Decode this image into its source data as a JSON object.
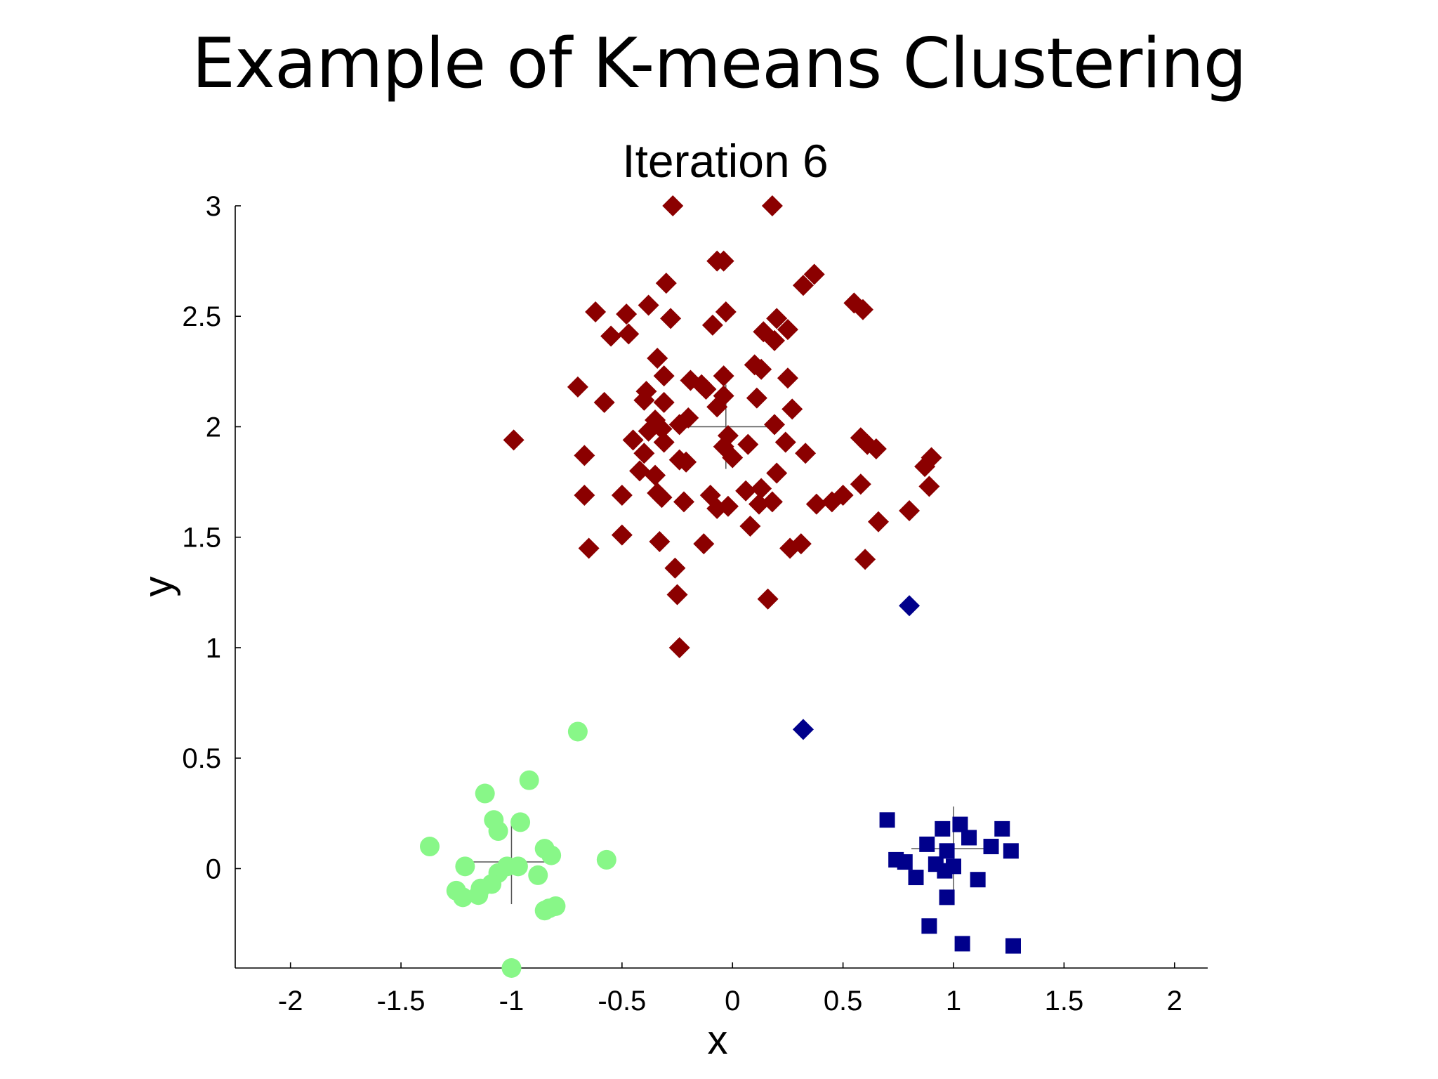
{
  "slide": {
    "title": "Example of K-means Clustering"
  },
  "chart_data": {
    "type": "scatter",
    "title": "Iteration 6",
    "xlabel": "x",
    "ylabel": "y",
    "xlim": [
      -2.25,
      2.15
    ],
    "ylim": [
      -0.45,
      3.0
    ],
    "xticks": [
      -2,
      -1.5,
      -1,
      -0.5,
      0,
      0.5,
      1,
      1.5,
      2
    ],
    "xtick_labels": [
      "-2",
      "-1.5",
      "-1",
      "-0.5",
      "0",
      "0.5",
      "1",
      "1.5",
      "2"
    ],
    "yticks": [
      0,
      0.5,
      1,
      1.5,
      2,
      2.5,
      3
    ],
    "ytick_labels": [
      "0",
      "0.5",
      "1",
      "1.5",
      "2",
      "2.5",
      "3"
    ],
    "grid": false,
    "legend": "none",
    "series": [
      {
        "color": "#8b0000",
        "marker": "diamond",
        "points": [
          [
            -0.27,
            3.0
          ],
          [
            0.18,
            3.0
          ],
          [
            -0.07,
            2.75
          ],
          [
            -0.04,
            2.75
          ],
          [
            0.37,
            2.69
          ],
          [
            0.32,
            2.64
          ],
          [
            -0.3,
            2.65
          ],
          [
            0.55,
            2.56
          ],
          [
            0.59,
            2.53
          ],
          [
            -0.62,
            2.52
          ],
          [
            -0.38,
            2.55
          ],
          [
            -0.48,
            2.51
          ],
          [
            -0.28,
            2.49
          ],
          [
            -0.03,
            2.52
          ],
          [
            -0.09,
            2.46
          ],
          [
            0.2,
            2.49
          ],
          [
            0.14,
            2.43
          ],
          [
            0.25,
            2.44
          ],
          [
            -0.55,
            2.41
          ],
          [
            -0.47,
            2.42
          ],
          [
            0.19,
            2.39
          ],
          [
            -0.34,
            2.31
          ],
          [
            0.1,
            2.28
          ],
          [
            0.13,
            2.26
          ],
          [
            -0.31,
            2.23
          ],
          [
            -0.04,
            2.23
          ],
          [
            0.25,
            2.22
          ],
          [
            -0.19,
            2.21
          ],
          [
            -0.14,
            2.19
          ],
          [
            -0.7,
            2.18
          ],
          [
            -0.12,
            2.17
          ],
          [
            -0.39,
            2.16
          ],
          [
            -0.04,
            2.14
          ],
          [
            0.11,
            2.13
          ],
          [
            -0.4,
            2.12
          ],
          [
            -0.58,
            2.11
          ],
          [
            -0.31,
            2.11
          ],
          [
            -0.07,
            2.09
          ],
          [
            0.27,
            2.08
          ],
          [
            -0.2,
            2.04
          ],
          [
            -0.35,
            2.03
          ],
          [
            -0.24,
            2.01
          ],
          [
            0.19,
            2.01
          ],
          [
            -0.38,
            1.98
          ],
          [
            -0.32,
            1.99
          ],
          [
            -0.02,
            1.96
          ],
          [
            -0.45,
            1.94
          ],
          [
            -0.99,
            1.94
          ],
          [
            0.58,
            1.95
          ],
          [
            -0.31,
            1.93
          ],
          [
            0.24,
            1.93
          ],
          [
            0.61,
            1.92
          ],
          [
            0.65,
            1.9
          ],
          [
            0.07,
            1.92
          ],
          [
            -0.04,
            1.91
          ],
          [
            -0.4,
            1.88
          ],
          [
            0.33,
            1.88
          ],
          [
            -0.67,
            1.87
          ],
          [
            -0.0,
            1.86
          ],
          [
            0.9,
            1.86
          ],
          [
            -0.24,
            1.85
          ],
          [
            -0.21,
            1.84
          ],
          [
            0.87,
            1.82
          ],
          [
            -0.42,
            1.8
          ],
          [
            0.2,
            1.79
          ],
          [
            -0.35,
            1.78
          ],
          [
            0.58,
            1.74
          ],
          [
            0.89,
            1.73
          ],
          [
            0.06,
            1.71
          ],
          [
            0.13,
            1.72
          ],
          [
            -0.67,
            1.69
          ],
          [
            -0.5,
            1.69
          ],
          [
            -0.34,
            1.7
          ],
          [
            -0.32,
            1.68
          ],
          [
            -0.1,
            1.69
          ],
          [
            0.12,
            1.65
          ],
          [
            0.18,
            1.66
          ],
          [
            0.38,
            1.65
          ],
          [
            0.45,
            1.66
          ],
          [
            0.5,
            1.69
          ],
          [
            -0.22,
            1.66
          ],
          [
            -0.07,
            1.63
          ],
          [
            -0.02,
            1.64
          ],
          [
            0.8,
            1.62
          ],
          [
            0.66,
            1.57
          ],
          [
            0.08,
            1.55
          ],
          [
            -0.5,
            1.51
          ],
          [
            -0.33,
            1.48
          ],
          [
            -0.13,
            1.47
          ],
          [
            0.26,
            1.45
          ],
          [
            0.31,
            1.47
          ],
          [
            -0.65,
            1.45
          ],
          [
            0.6,
            1.4
          ],
          [
            -0.26,
            1.36
          ],
          [
            -0.25,
            1.24
          ],
          [
            0.16,
            1.22
          ],
          [
            -0.24,
            1.0
          ]
        ]
      },
      {
        "color": "#00008b",
        "marker": "diamond",
        "points": [
          [
            0.8,
            1.19
          ],
          [
            0.32,
            0.63
          ]
        ]
      },
      {
        "color": "#00008b",
        "marker": "square",
        "points": [
          [
            0.7,
            0.22
          ],
          [
            0.88,
            0.11
          ],
          [
            0.95,
            0.18
          ],
          [
            1.03,
            0.2
          ],
          [
            1.07,
            0.14
          ],
          [
            1.22,
            0.18
          ],
          [
            0.74,
            0.04
          ],
          [
            0.78,
            0.03
          ],
          [
            0.92,
            0.02
          ],
          [
            0.97,
            0.08
          ],
          [
            1.17,
            0.1
          ],
          [
            1.26,
            0.08
          ],
          [
            0.96,
            -0.01
          ],
          [
            1.0,
            0.01
          ],
          [
            0.83,
            -0.04
          ],
          [
            1.11,
            -0.05
          ],
          [
            0.97,
            -0.13
          ],
          [
            0.89,
            -0.26
          ],
          [
            1.04,
            -0.34
          ],
          [
            1.27,
            -0.35
          ]
        ]
      },
      {
        "color": "#88f788",
        "marker": "circle",
        "points": [
          [
            -0.7,
            0.62
          ],
          [
            -0.92,
            0.4
          ],
          [
            -1.12,
            0.34
          ],
          [
            -1.08,
            0.22
          ],
          [
            -0.96,
            0.21
          ],
          [
            -1.06,
            0.17
          ],
          [
            -1.37,
            0.1
          ],
          [
            -0.85,
            0.09
          ],
          [
            -0.82,
            0.06
          ],
          [
            -0.57,
            0.04
          ],
          [
            -1.21,
            0.01
          ],
          [
            -0.97,
            0.01
          ],
          [
            -1.02,
            0.01
          ],
          [
            -1.06,
            -0.02
          ],
          [
            -0.88,
            -0.03
          ],
          [
            -1.09,
            -0.07
          ],
          [
            -1.14,
            -0.09
          ],
          [
            -1.25,
            -0.1
          ],
          [
            -1.22,
            -0.13
          ],
          [
            -1.15,
            -0.12
          ],
          [
            -0.83,
            -0.18
          ],
          [
            -0.8,
            -0.17
          ],
          [
            -0.85,
            -0.19
          ],
          [
            -1.0,
            -0.45
          ]
        ]
      }
    ],
    "centroids": [
      {
        "color": "#555555",
        "x": -0.03,
        "y": 2.0,
        "marker": "plus"
      },
      {
        "color": "#555555",
        "x": 1.0,
        "y": 0.09,
        "marker": "plus"
      },
      {
        "color": "#555555",
        "x": -1.0,
        "y": 0.03,
        "marker": "plus"
      }
    ]
  }
}
